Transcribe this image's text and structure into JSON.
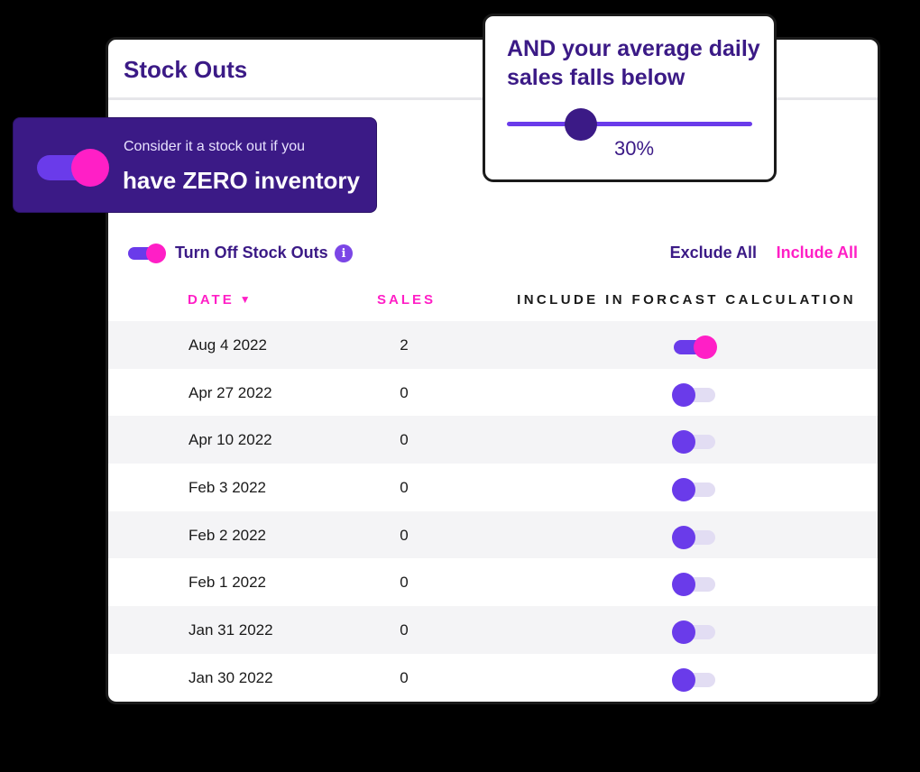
{
  "card": {
    "title": "Stock Outs"
  },
  "controls": {
    "turn_off_label": "Turn Off Stock Outs",
    "info_glyph": "i",
    "exclude_all": "Exclude All",
    "include_all": "Include All"
  },
  "table": {
    "headers": {
      "date": "DATE",
      "sales": "SALES",
      "include": "INCLUDE IN FORCAST CALCULATION"
    },
    "sort_caret": "▼",
    "rows": [
      {
        "date": "Aug 4 2022",
        "sales": "2",
        "include": true
      },
      {
        "date": "Apr 27 2022",
        "sales": "0",
        "include": false
      },
      {
        "date": "Apr 10 2022",
        "sales": "0",
        "include": false
      },
      {
        "date": "Feb 3 2022",
        "sales": "0",
        "include": false
      },
      {
        "date": "Feb 2 2022",
        "sales": "0",
        "include": false
      },
      {
        "date": "Feb 1 2022",
        "sales": "0",
        "include": false
      },
      {
        "date": "Jan 31 2022",
        "sales": "0",
        "include": false
      },
      {
        "date": "Jan 30 2022",
        "sales": "0",
        "include": false
      }
    ]
  },
  "zero_inventory": {
    "small": "Consider it a stock out if you",
    "big": "have ZERO inventory",
    "enabled": true
  },
  "sales_threshold": {
    "title": "AND your average daily sales falls below",
    "value_label": "30%",
    "value_fraction": 0.3
  },
  "colors": {
    "brand_purple": "#3b1a86",
    "toggle_purple": "#6a3bea",
    "accent_pink": "#ff1fc6"
  },
  "icons": {
    "info": "info-icon",
    "sort": "caret-down-icon"
  }
}
